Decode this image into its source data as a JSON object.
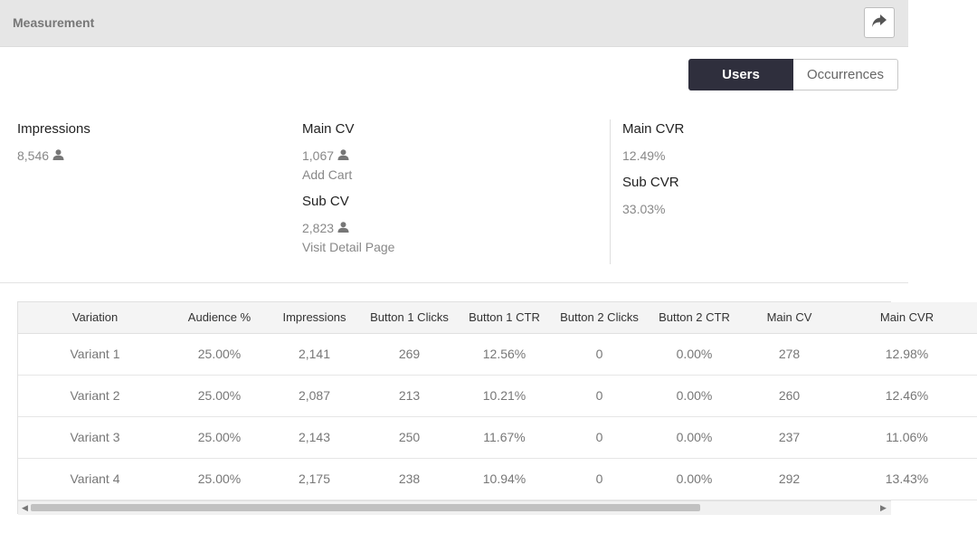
{
  "header": {
    "title": "Measurement",
    "share_icon": "share-arrow-icon"
  },
  "toggle": {
    "users_label": "Users",
    "occurrences_label": "Occurrences",
    "selected": "Users"
  },
  "metrics": {
    "impressions": {
      "label": "Impressions",
      "value": "8,546"
    },
    "main_cv": {
      "label": "Main CV",
      "value": "1,067",
      "sub": "Add Cart"
    },
    "sub_cv": {
      "label": "Sub CV",
      "value": "2,823",
      "sub": "Visit Detail Page"
    },
    "main_cvr": {
      "label": "Main CVR",
      "value": "12.49%"
    },
    "sub_cvr": {
      "label": "Sub CVR",
      "value": "33.03%"
    },
    "user_icon": "person-icon"
  },
  "table": {
    "columns": [
      "Variation",
      "Audience %",
      "Impressions",
      "Button 1 Clicks",
      "Button 1 CTR",
      "Button 2 Clicks",
      "Button 2 CTR",
      "Main CV",
      "Main CVR"
    ],
    "rows": [
      [
        "Variant 1",
        "25.00%",
        "2,141",
        "269",
        "12.56%",
        "0",
        "0.00%",
        "278",
        "12.98%"
      ],
      [
        "Variant 2",
        "25.00%",
        "2,087",
        "213",
        "10.21%",
        "0",
        "0.00%",
        "260",
        "12.46%"
      ],
      [
        "Variant 3",
        "25.00%",
        "2,143",
        "250",
        "11.67%",
        "0",
        "0.00%",
        "237",
        "11.06%"
      ],
      [
        "Variant 4",
        "25.00%",
        "2,175",
        "238",
        "10.94%",
        "0",
        "0.00%",
        "292",
        "13.43%"
      ]
    ]
  },
  "colors": {
    "toggle_active": "#2f2f3d",
    "header_bg": "#e6e6e6"
  }
}
